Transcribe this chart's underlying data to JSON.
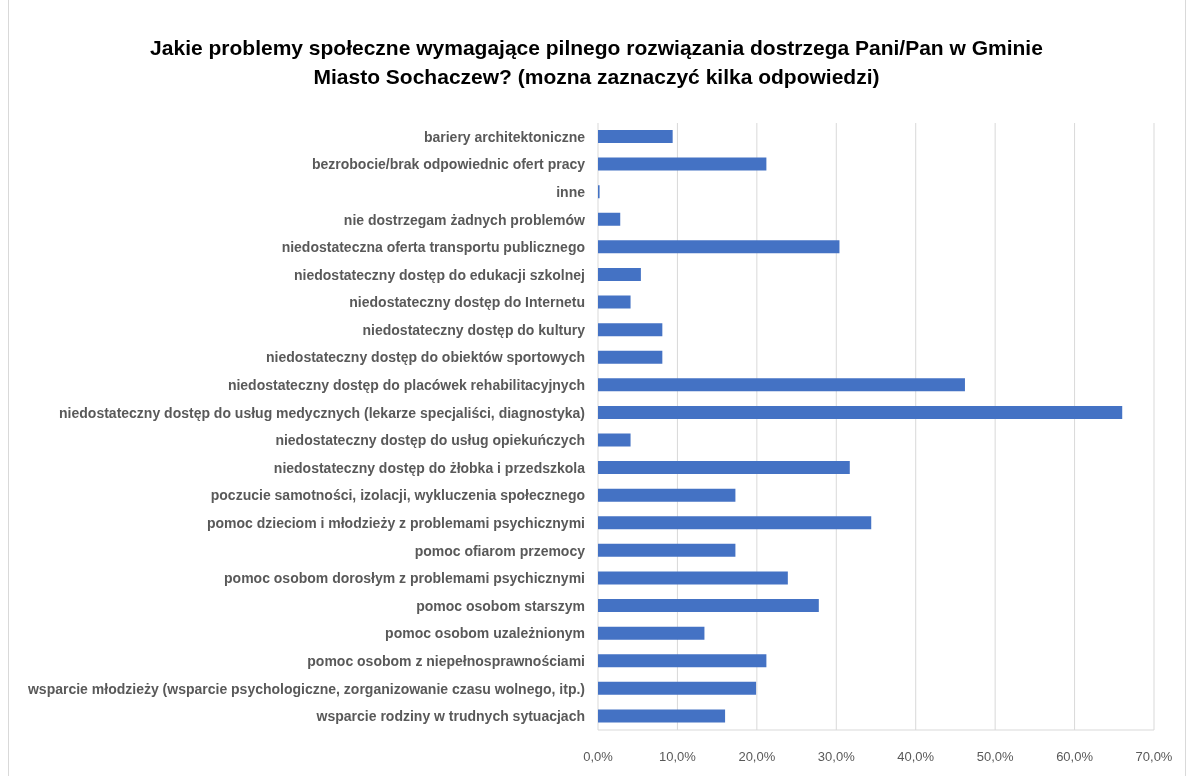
{
  "chart_data": {
    "type": "bar",
    "orientation": "horizontal",
    "title": "Jakie problemy społeczne wymagające pilnego rozwiązania dostrzega Pani/Pan w Gminie Miasto Sochaczew? (mozna zaznaczyć kilka odpowiedzi)",
    "categories": [
      "bariery architektoniczne",
      "bezrobocie/brak odpowiednic ofert pracy",
      "inne",
      "nie dostrzegam żadnych problemów",
      "niedostateczna oferta transportu publicznego",
      "niedostateczny dostęp do edukacji szkolnej",
      "niedostateczny dostęp do Internetu",
      "niedostateczny dostęp do kultury",
      "niedostateczny dostęp do obiektów sportowych",
      "niedostateczny dostęp do placówek rehabilitacyjnych",
      "niedostateczny dostęp do usług medycznych (lekarze specjaliści, diagnostyka)",
      "niedostateczny dostęp do usług opiekuńczych",
      "niedostateczny dostęp do żłobka i przedszkola",
      "poczucie samotności, izolacji, wykluczenia społecznego",
      "pomoc dzieciom i młodzieży z problemami psychicznymi",
      "pomoc ofiarom przemocy",
      "pomoc osobom dorosłym z problemami psychicznymi",
      "pomoc osobom starszym",
      "pomoc osobom uzależnionym",
      "pomoc osobom z niepełnosprawnościami",
      "wsparcie młodzieży (wsparcie psychologiczne, zorganizowanie czasu wolnego, itp.)",
      "wsparcie rodziny w trudnych sytuacjach"
    ],
    "values": [
      9.4,
      21.2,
      0.2,
      2.8,
      30.4,
      5.4,
      4.1,
      8.1,
      8.1,
      46.2,
      66.0,
      4.1,
      31.7,
      17.3,
      34.4,
      17.3,
      23.9,
      27.8,
      13.4,
      21.2,
      19.9,
      16.0
    ],
    "color": "#4472c4",
    "xlim": [
      0,
      70
    ],
    "xticks": [
      {
        "value": 0,
        "label": "0,0%"
      },
      {
        "value": 10,
        "label": "10,0%"
      },
      {
        "value": 20,
        "label": "20,0%"
      },
      {
        "value": 30,
        "label": "30,0%"
      },
      {
        "value": 40,
        "label": "40,0%"
      },
      {
        "value": 50,
        "label": "50,0%"
      },
      {
        "value": 60,
        "label": "60,0%"
      },
      {
        "value": 70,
        "label": "70,0%"
      }
    ],
    "grid": "x"
  }
}
